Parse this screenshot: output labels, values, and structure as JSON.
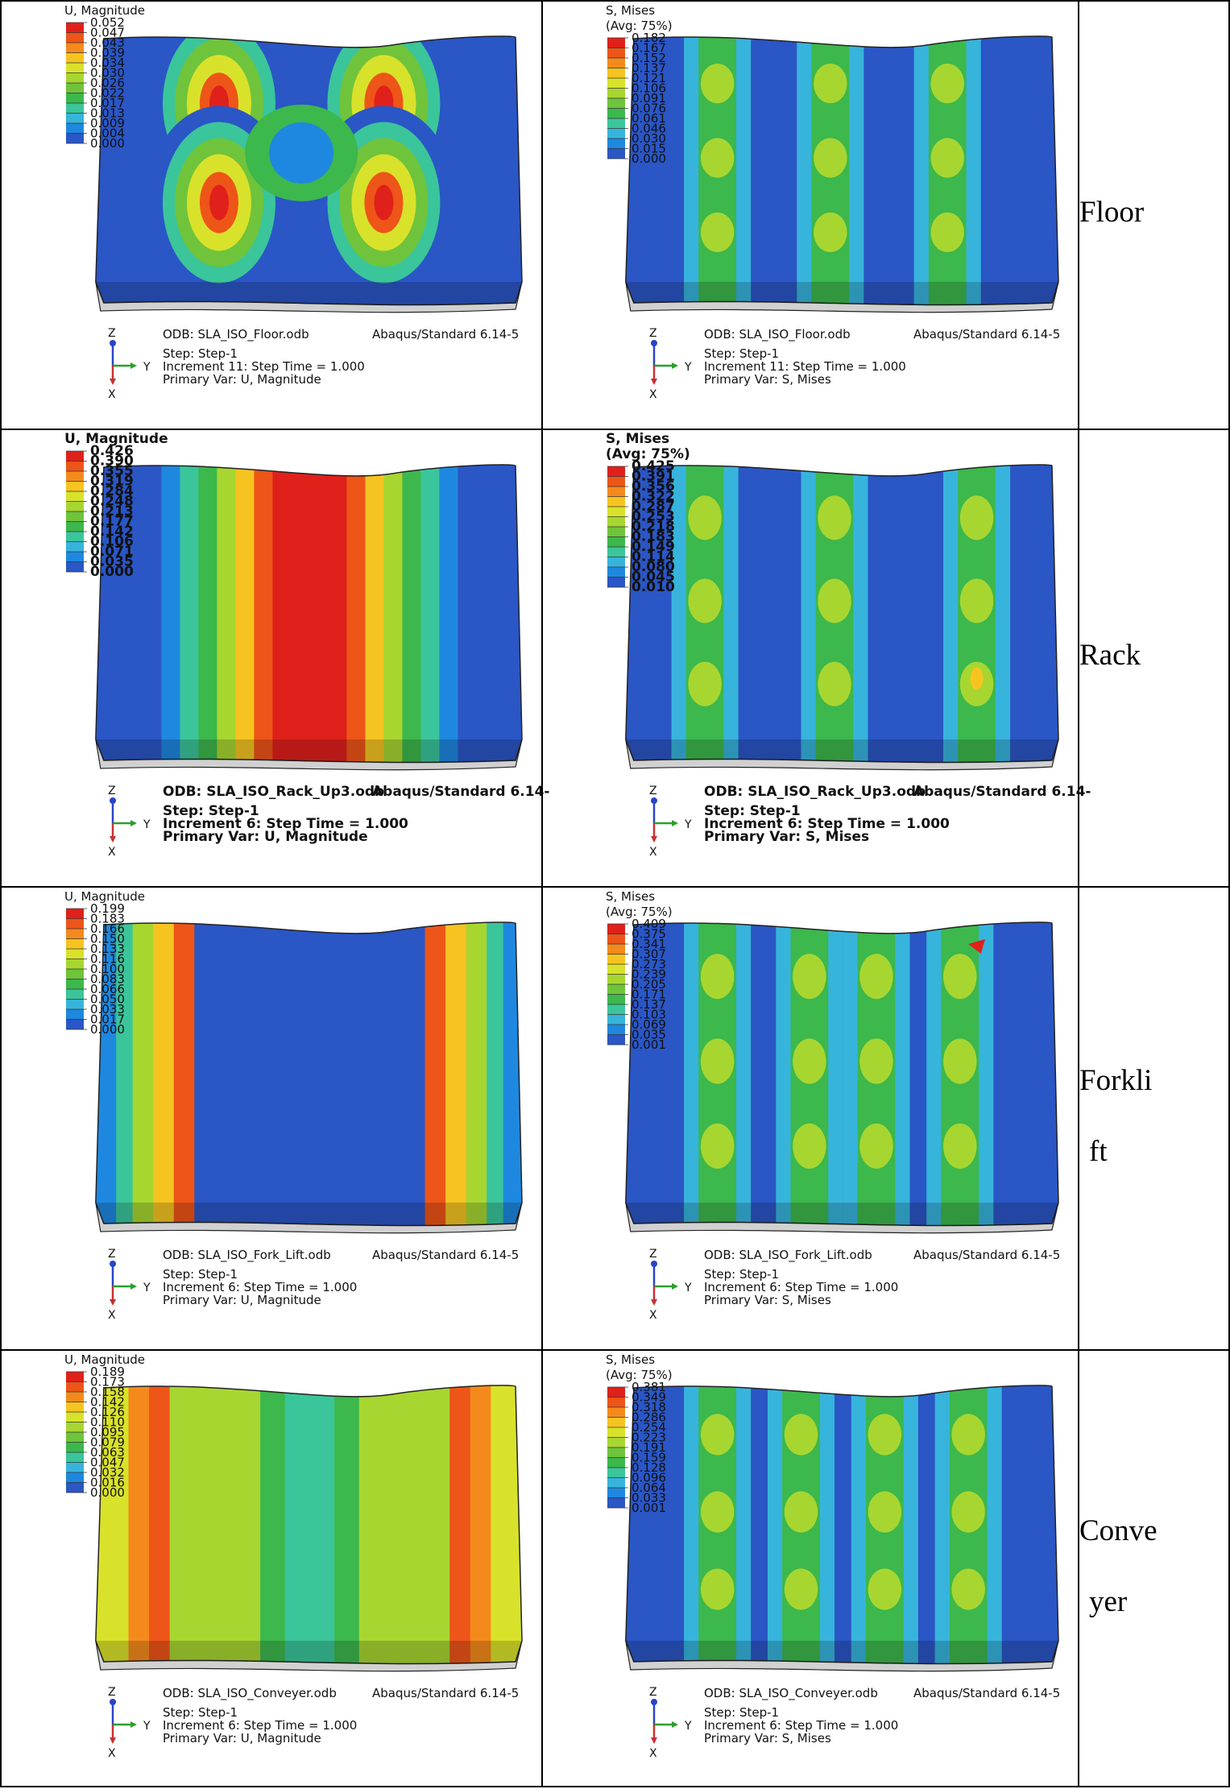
{
  "rows": [
    {
      "label_lines": [
        "Floor"
      ],
      "left": {
        "legend_title": [
          "U, Magnitude"
        ],
        "legend_values": [
          "0.052",
          "0.047",
          "0.043",
          "0.039",
          "0.034",
          "0.030",
          "0.026",
          "0.022",
          "0.017",
          "0.013",
          "0.009",
          "0.004",
          "0.000"
        ],
        "odb": "ODB: SLA_ISO_Floor.odb",
        "solver": "Abaqus/Standard 6.14-5",
        "step": "Step: Step-1",
        "increment": "Increment     11: Step Time =     1.000",
        "primary": "Primary Var: U, Magnitude"
      },
      "right": {
        "legend_title": [
          "S, Mises",
          "(Avg: 75%)"
        ],
        "legend_values": [
          "0.182",
          "0.167",
          "0.152",
          "0.137",
          "0.121",
          "0.106",
          "0.091",
          "0.076",
          "0.061",
          "0.046",
          "0.030",
          "0.015",
          "0.000"
        ],
        "odb": "ODB: SLA_ISO_Floor.odb",
        "solver": "Abaqus/Standard 6.14-5",
        "step": "Step: Step-1",
        "increment": "Increment     11: Step Time =     1.000",
        "primary": "Primary Var: S, Mises"
      }
    },
    {
      "label_lines": [
        "Rack"
      ],
      "left": {
        "legend_title": [
          "U, Magnitude"
        ],
        "legend_values": [
          "0.426",
          "0.390",
          "0.355",
          "0.319",
          "0.284",
          "0.248",
          "0.213",
          "0.177",
          "0.142",
          "0.106",
          "0.071",
          "0.035",
          "0.000"
        ],
        "odb": "ODB: SLA_ISO_Rack_Up3.odb",
        "solver": "Abaqus/Standard 6.14-",
        "step": "Step: Step-1",
        "increment": "Increment     6: Step Time =     1.000",
        "primary": "Primary Var: U, Magnitude"
      },
      "right": {
        "legend_title": [
          "S, Mises",
          "(Avg: 75%)"
        ],
        "legend_values": [
          "0.425",
          "0.391",
          "0.356",
          "0.322",
          "0.287",
          "0.253",
          "0.218",
          "0.183",
          "0.149",
          "0.114",
          "0.080",
          "0.045",
          "0.010"
        ],
        "odb": "ODB: SLA_ISO_Rack_Up3.odb",
        "solver": "Abaqus/Standard 6.14-",
        "step": "Step: Step-1",
        "increment": "Increment     6: Step Time =     1.000",
        "primary": "Primary Var: S, Mises"
      }
    },
    {
      "label_lines": [
        "Forkli",
        "ft"
      ],
      "left": {
        "legend_title": [
          "U, Magnitude"
        ],
        "legend_values": [
          "0.199",
          "0.183",
          "0.166",
          "0.150",
          "0.133",
          "0.116",
          "0.100",
          "0.083",
          "0.066",
          "0.050",
          "0.033",
          "0.017",
          "0.000"
        ],
        "odb": "ODB: SLA_ISO_Fork_Lift.odb",
        "solver": "Abaqus/Standard 6.14-5",
        "step": "Step: Step-1",
        "increment": "Increment     6: Step Time =     1.000",
        "primary": "Primary Var: U, Magnitude"
      },
      "right": {
        "legend_title": [
          "S, Mises",
          "(Avg: 75%)"
        ],
        "legend_values": [
          "0.409",
          "0.375",
          "0.341",
          "0.307",
          "0.273",
          "0.239",
          "0.205",
          "0.171",
          "0.137",
          "0.103",
          "0.069",
          "0.035",
          "0.001"
        ],
        "odb": "ODB: SLA_ISO_Fork_Lift.odb",
        "solver": "Abaqus/Standard 6.14-5",
        "step": "Step: Step-1",
        "increment": "Increment     6: Step Time =     1.000",
        "primary": "Primary Var: S, Mises"
      }
    },
    {
      "label_lines": [
        "Conve",
        "yer"
      ],
      "left": {
        "legend_title": [
          "U, Magnitude"
        ],
        "legend_values": [
          "0.189",
          "0.173",
          "0.158",
          "0.142",
          "0.126",
          "0.110",
          "0.095",
          "0.079",
          "0.063",
          "0.047",
          "0.032",
          "0.016",
          "0.000"
        ],
        "odb": "ODB: SLA_ISO_Conveyer.odb",
        "solver": "Abaqus/Standard 6.14-5",
        "step": "Step: Step-1",
        "increment": "Increment     6: Step Time =     1.000",
        "primary": "Primary Var: U, Magnitude"
      },
      "right": {
        "legend_title": [
          "S, Mises",
          "(Avg: 75%)"
        ],
        "legend_values": [
          "0.381",
          "0.349",
          "0.318",
          "0.286",
          "0.254",
          "0.223",
          "0.191",
          "0.159",
          "0.128",
          "0.096",
          "0.064",
          "0.033",
          "0.001"
        ],
        "odb": "ODB: SLA_ISO_Conveyer.odb",
        "solver": "Abaqus/Standard 6.14-5",
        "step": "Step: Step-1",
        "increment": "Increment     6: Step Time =     1.000",
        "primary": "Primary Var: S, Mises"
      }
    }
  ],
  "triad": {
    "x": "X",
    "y": "Y",
    "z": "Z"
  },
  "colormap": [
    "#e0201b",
    "#ee5518",
    "#f58a1c",
    "#f6c421",
    "#d9e22a",
    "#a8d631",
    "#6fc43b",
    "#3cb84c",
    "#3bc59a",
    "#37b4dc",
    "#1e88e0",
    "#2a56c6",
    "#2b3fa8"
  ]
}
